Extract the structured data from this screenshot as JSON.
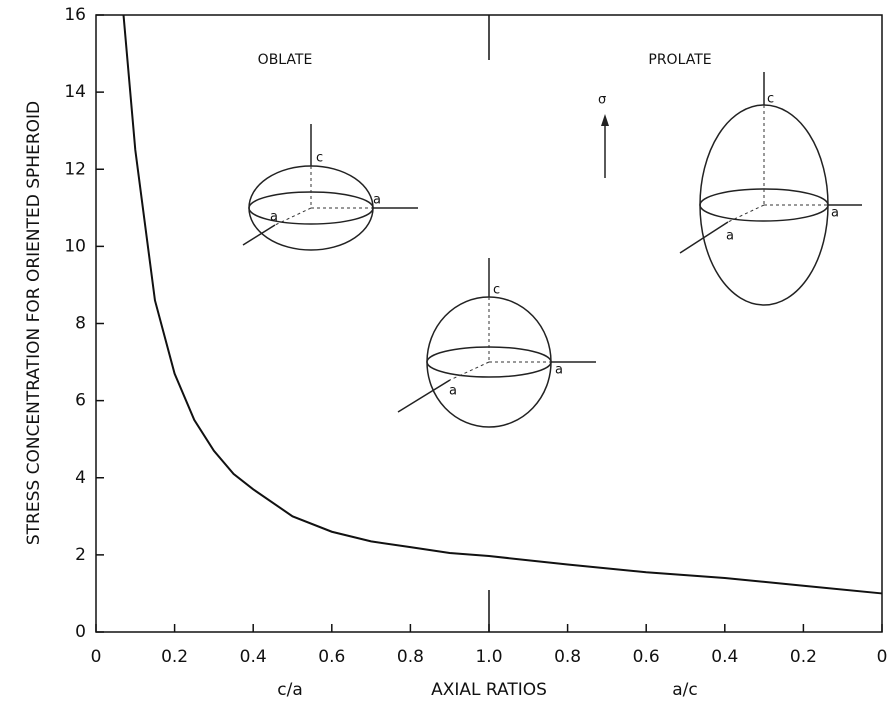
{
  "chart_data": {
    "type": "line",
    "y_label": "STRESS CONCENTRATION FOR ORIENTED SPHEROID",
    "x_label_left": "c/a",
    "x_label": "AXIAL RATIOS",
    "x_label_right": "a/c",
    "annotations": {
      "oblate": "OBLATE",
      "prolate": "PROLATE",
      "stress": "σ",
      "axis_c": "c",
      "axis_a": "a"
    },
    "x": [
      0.07,
      0.1,
      0.15,
      0.2,
      0.25,
      0.3,
      0.35,
      0.4,
      0.5,
      0.6,
      0.7,
      0.8,
      0.9,
      1.0,
      1.2,
      1.4,
      1.6,
      1.8,
      2.0
    ],
    "values": [
      16,
      12.5,
      8.6,
      6.7,
      5.5,
      4.7,
      4.1,
      3.7,
      3.0,
      2.6,
      2.35,
      2.2,
      2.05,
      1.97,
      1.75,
      1.55,
      1.4,
      1.2,
      1.0
    ],
    "color": "#111111",
    "xlim": [
      0,
      2
    ],
    "ylim": [
      0,
      16
    ],
    "xticks": [
      0,
      0.2,
      0.4,
      0.6,
      0.8,
      {
        "value": 1,
        "label": "1.0"
      },
      {
        "value": 1.2,
        "label": "0.8"
      },
      {
        "value": 1.4,
        "label": "0.6"
      },
      {
        "value": 1.6,
        "label": "0.4"
      },
      {
        "value": 1.8,
        "label": "0.2"
      },
      {
        "value": 2,
        "label": "0"
      }
    ],
    "yticks": [
      0,
      2,
      4,
      6,
      8,
      10,
      12,
      14,
      16
    ]
  }
}
